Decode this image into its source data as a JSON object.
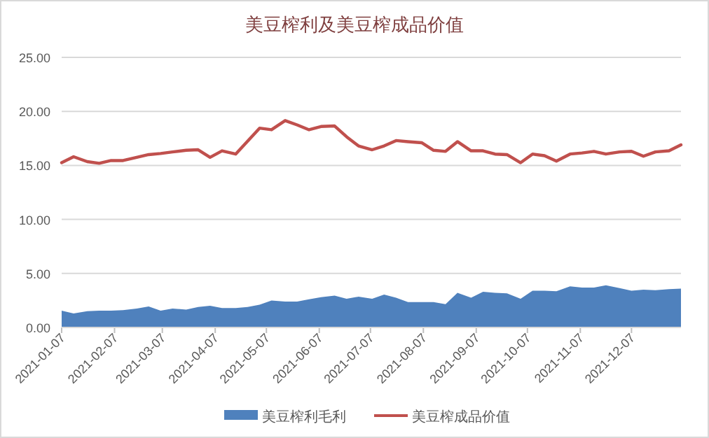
{
  "chart_data": {
    "type": "area",
    "title": "美豆榨利及美豆榨成品价值",
    "x": [
      "2021-01-07",
      "2021-01-14",
      "2021-01-22",
      "2021-01-29",
      "2021-02-05",
      "2021-02-12",
      "2021-02-20",
      "2021-02-27",
      "2021-03-06",
      "2021-03-13",
      "2021-03-21",
      "2021-03-28",
      "2021-04-04",
      "2021-04-11",
      "2021-04-19",
      "2021-04-26",
      "2021-05-03",
      "2021-05-10",
      "2021-05-18",
      "2021-05-25",
      "2021-06-01",
      "2021-06-08",
      "2021-06-16",
      "2021-06-23",
      "2021-06-30",
      "2021-07-08",
      "2021-07-15",
      "2021-07-22",
      "2021-07-29",
      "2021-08-06",
      "2021-08-13",
      "2021-08-20",
      "2021-08-27",
      "2021-09-04",
      "2021-09-11",
      "2021-09-18",
      "2021-09-25",
      "2021-10-03",
      "2021-10-10",
      "2021-10-17",
      "2021-10-24",
      "2021-11-01",
      "2021-11-08",
      "2021-11-15",
      "2021-11-22",
      "2021-11-30",
      "2021-12-07",
      "2021-12-14",
      "2021-12-21",
      "2021-12-29",
      "2022-01-05"
    ],
    "series": [
      {
        "name": "美豆榨利毛利",
        "color": "#4f81bd",
        "values": [
          1.55,
          1.3,
          1.5,
          1.55,
          1.55,
          1.6,
          1.75,
          1.95,
          1.55,
          1.75,
          1.65,
          1.9,
          2.0,
          1.8,
          1.8,
          1.9,
          2.1,
          2.5,
          2.4,
          2.4,
          2.6,
          2.8,
          2.95,
          2.65,
          2.85,
          2.65,
          3.05,
          2.75,
          2.35,
          2.35,
          2.35,
          2.15,
          3.2,
          2.75,
          3.3,
          3.2,
          3.15,
          2.65,
          3.4,
          3.4,
          3.35,
          3.8,
          3.7,
          3.7,
          3.9,
          3.65,
          3.4,
          3.5,
          3.45,
          3.55,
          3.6
        ]
      },
      {
        "name": "美豆榨成品价值",
        "type": "line",
        "color": "#c0504d",
        "values": [
          15.25,
          15.8,
          15.35,
          15.2,
          15.45,
          15.45,
          15.75,
          16.0,
          16.1,
          16.25,
          16.4,
          16.45,
          15.75,
          16.35,
          16.05,
          17.25,
          18.45,
          18.3,
          19.15,
          18.75,
          18.3,
          18.6,
          18.65,
          17.65,
          16.8,
          16.45,
          16.8,
          17.3,
          17.2,
          17.1,
          16.4,
          16.3,
          17.2,
          16.35,
          16.35,
          16.05,
          16.0,
          15.25,
          16.05,
          15.9,
          15.4,
          16.05,
          16.15,
          16.3,
          16.05,
          16.25,
          16.3,
          15.85,
          16.25,
          16.35,
          16.9
        ]
      }
    ],
    "xlim": [
      "2021-01-07",
      "2022-01-05"
    ],
    "xticks": [
      {
        "value": "2021-01-07",
        "label": "2021-01-07"
      },
      {
        "value": "2021-02-07",
        "label": "2021-02-07"
      },
      {
        "value": "2021-03-07",
        "label": "2021-03-07"
      },
      {
        "value": "2021-04-07",
        "label": "2021-04-07"
      },
      {
        "value": "2021-05-07",
        "label": "2021-05-07"
      },
      {
        "value": "2021-06-07",
        "label": "2021-06-07"
      },
      {
        "value": "2021-07-07",
        "label": "2021-07-07"
      },
      {
        "value": "2021-08-07",
        "label": "2021-08-07"
      },
      {
        "value": "2021-09-07",
        "label": "2021-09-07"
      },
      {
        "value": "2021-10-07",
        "label": "2021-10-07"
      },
      {
        "value": "2021-11-07",
        "label": "2021-11-07"
      },
      {
        "value": "2021-12-07",
        "label": "2021-12-07"
      }
    ],
    "ylim": [
      0,
      25
    ],
    "yticks": [
      {
        "value": 0,
        "label": "0.00"
      },
      {
        "value": 5,
        "label": "5.00"
      },
      {
        "value": 10,
        "label": "10.00"
      },
      {
        "value": 15,
        "label": "15.00"
      },
      {
        "value": 20,
        "label": "20.00"
      },
      {
        "value": 25,
        "label": "25.00"
      }
    ],
    "grid": "y",
    "legend": "bottom",
    "marker": "none",
    "line_style": "solid"
  }
}
